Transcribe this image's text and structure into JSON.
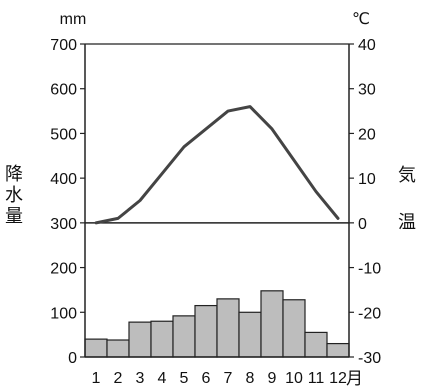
{
  "chart_data": {
    "type": "bar+line",
    "categories": [
      "1",
      "2",
      "3",
      "4",
      "5",
      "6",
      "7",
      "8",
      "9",
      "10",
      "11",
      "12"
    ],
    "x_unit": "月",
    "precipitation": {
      "name": "降水量",
      "unit": "mm",
      "values": [
        40,
        38,
        78,
        80,
        92,
        115,
        130,
        100,
        148,
        128,
        55,
        30
      ],
      "ylim": [
        0,
        700
      ],
      "ticks": [
        0,
        100,
        200,
        300,
        400,
        500,
        600,
        700
      ],
      "color": "#bdbdbd"
    },
    "temperature": {
      "name": "気温",
      "unit": "℃",
      "values": [
        0,
        1,
        5,
        11,
        17,
        21,
        25,
        26,
        21,
        14,
        7,
        1
      ],
      "ylim": [
        -30,
        40
      ],
      "ticks": [
        -30,
        -20,
        -10,
        0,
        10,
        20,
        30,
        40
      ],
      "color": "#444444"
    },
    "left_label_chars": [
      "降",
      "水",
      "量"
    ],
    "right_label_chars": [
      "気",
      "温"
    ]
  }
}
